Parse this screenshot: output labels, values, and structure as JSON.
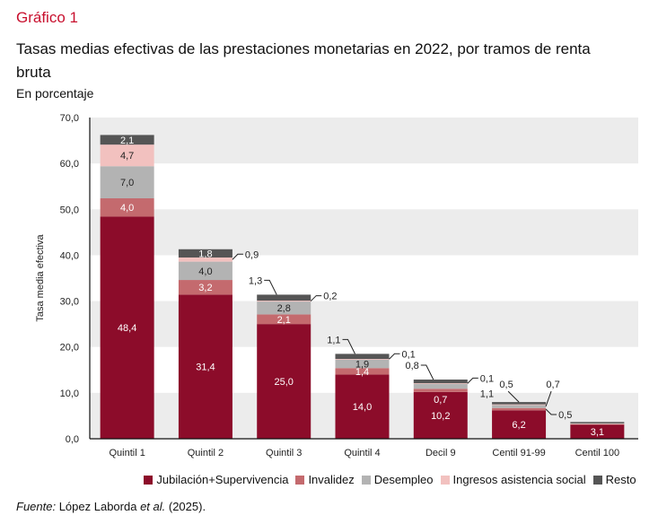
{
  "header": {
    "kicker": "Gráfico 1",
    "title": "Tasas medias efectivas de las prestaciones monetarias en 2022, por tramos de renta bruta",
    "subtitle": "En porcentaje"
  },
  "source": {
    "label": "Fuente:",
    "text": " López Laborda ",
    "etal": "et al.",
    "year": " (2025)."
  },
  "colors": {
    "jubilacion": "#8c0c2a",
    "invalidez": "#c46a6e",
    "desempleo": "#b3b3b3",
    "ingresos": "#f2c1bf",
    "resto": "#555555",
    "band": "#ececec",
    "kicker": "#c8102e"
  },
  "chart_data": {
    "type": "bar",
    "stacked": true,
    "title": "Tasas medias efectivas de las prestaciones monetarias en 2022, por tramos de renta bruta",
    "subtitle": "En porcentaje",
    "xlabel": "",
    "ylabel": "Tasa media efectiva",
    "ylim": [
      0,
      70
    ],
    "yticks": [
      0,
      10,
      20,
      30,
      40,
      50,
      60,
      70
    ],
    "ytick_labels": [
      "0,0",
      "10,0",
      "20,0",
      "30,0",
      "40,0",
      "50,0",
      "60,0",
      "70,0"
    ],
    "grid": "alternating horizontal bands",
    "legend_position": "bottom",
    "categories": [
      "Quintil 1",
      "Quintil 2",
      "Quintil 3",
      "Quintil 4",
      "Decil 9",
      "Centil 91-99",
      "Centil 100"
    ],
    "series": [
      {
        "name": "Jubilación+Supervivencia",
        "key": "jubilacion",
        "values": [
          48.4,
          31.4,
          25.0,
          14.0,
          10.2,
          6.2,
          3.1
        ]
      },
      {
        "name": "Invalidez",
        "key": "invalidez",
        "values": [
          4.0,
          3.2,
          2.1,
          1.4,
          0.7,
          0.5,
          0.1
        ]
      },
      {
        "name": "Desempleo",
        "key": "desempleo",
        "values": [
          7.0,
          4.0,
          2.8,
          1.9,
          1.1,
          0.7,
          0.1
        ]
      },
      {
        "name": "Ingresos asistencia social",
        "key": "ingresos",
        "values": [
          4.7,
          0.9,
          0.2,
          0.1,
          0.1,
          0.1,
          0.05
        ]
      },
      {
        "name": "Resto",
        "key": "resto",
        "values": [
          2.1,
          1.8,
          1.3,
          1.1,
          0.8,
          0.5,
          0.3
        ]
      }
    ],
    "labels": [
      [
        {
          "s": 0,
          "t": "48,4",
          "mode": "in",
          "c": "#fff"
        },
        {
          "s": 1,
          "t": "4,0",
          "mode": "in",
          "c": "#fff"
        },
        {
          "s": 2,
          "t": "7,0",
          "mode": "in",
          "c": "#222"
        },
        {
          "s": 3,
          "t": "4,7",
          "mode": "in",
          "c": "#222"
        },
        {
          "s": 4,
          "t": "2,1",
          "mode": "in",
          "c": "#fff"
        }
      ],
      [
        {
          "s": 0,
          "t": "31,4",
          "mode": "in",
          "c": "#fff"
        },
        {
          "s": 1,
          "t": "3,2",
          "mode": "in",
          "c": "#fff"
        },
        {
          "s": 2,
          "t": "4,0",
          "mode": "in",
          "c": "#222"
        },
        {
          "s": 3,
          "t": "0,9",
          "mode": "right"
        },
        {
          "s": 4,
          "t": "1,8",
          "mode": "in",
          "c": "#fff"
        }
      ],
      [
        {
          "s": 0,
          "t": "25,0",
          "mode": "in",
          "c": "#fff"
        },
        {
          "s": 1,
          "t": "2,1",
          "mode": "in",
          "c": "#fff"
        },
        {
          "s": 2,
          "t": "2,8",
          "mode": "in",
          "c": "#222"
        },
        {
          "s": 3,
          "t": "0,2",
          "mode": "right"
        },
        {
          "s": 4,
          "t": "1,3",
          "mode": "left"
        }
      ],
      [
        {
          "s": 0,
          "t": "14,0",
          "mode": "in",
          "c": "#fff"
        },
        {
          "s": 1,
          "t": "1,4",
          "mode": "in",
          "c": "#fff"
        },
        {
          "s": 2,
          "t": "1,9",
          "mode": "in",
          "c": "#222"
        },
        {
          "s": 3,
          "t": "0,1",
          "mode": "right"
        },
        {
          "s": 4,
          "t": "1,1",
          "mode": "left"
        }
      ],
      [
        {
          "s": 0,
          "t": "10,2",
          "mode": "in",
          "c": "#fff"
        },
        {
          "s": 1,
          "t": "0,7",
          "mode": "inlow",
          "c": "#fff"
        },
        {
          "s": 2,
          "t": "1,1",
          "mode": "right2"
        },
        {
          "s": 3,
          "t": "0,1",
          "mode": "right"
        },
        {
          "s": 4,
          "t": "0,8",
          "mode": "left"
        }
      ],
      [
        {
          "s": 0,
          "t": "6,2",
          "mode": "in",
          "c": "#fff"
        },
        {
          "s": 1,
          "t": "0,5",
          "mode": "right2"
        },
        {
          "s": 2,
          "t": "0,7",
          "mode": "rightup"
        },
        {
          "s": 4,
          "t": "0,5",
          "mode": "leftup"
        }
      ],
      [
        {
          "s": 0,
          "t": "3,1",
          "mode": "in",
          "c": "#fff"
        }
      ]
    ]
  }
}
